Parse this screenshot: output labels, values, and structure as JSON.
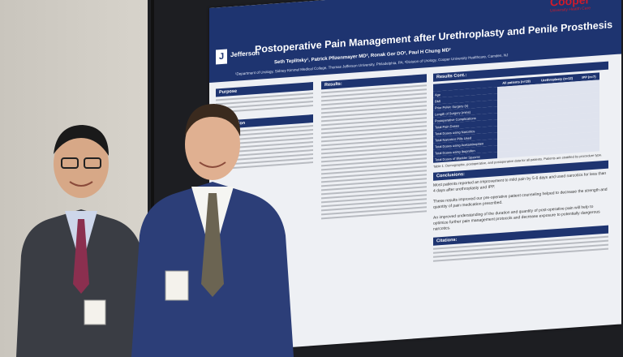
{
  "poster": {
    "title": "Postoperative Pain Management after Urethroplasty and Penile Prosthesis",
    "authors": "Seth Teplitsky¹, Patrick Pfizenmayer MD², Ronak Gor DO², Paul H Chung MD¹",
    "affiliation": "¹Department of Urology, Sidney Kimmel Medical College, Thomas Jefferson University, Philadelphia, PA; ²Division of Urology, Cooper University Healthcare, Camden, NJ",
    "logo_letter": "J",
    "logo_word": "Jefferson",
    "cooper_logo": "Cooper",
    "cooper_sub": "University Health Care",
    "sections": {
      "purpose": "Purpose",
      "introduction": "Introduction",
      "results": "Results:",
      "results_cont": "Results Cont.:",
      "conclusions": "Conclusions:",
      "citations": "Citations:"
    },
    "table": {
      "headers": [
        "",
        "All patients (n=19)",
        "Urethroplasty (n=12)",
        "IPP (n=7)"
      ],
      "rows": [
        [
          "Age",
          "",
          "",
          ""
        ],
        [
          "BMI",
          "",
          "",
          ""
        ],
        [
          "Prior Pelvic Surgery (n)",
          "",
          "",
          ""
        ],
        [
          "Length of Surgery (mins)",
          "",
          "",
          ""
        ],
        [
          "Postoperative Complications",
          "",
          "",
          ""
        ],
        [
          "Total Pain Doses",
          "",
          "",
          ""
        ],
        [
          "Total Doses using Narcotics",
          "",
          "",
          ""
        ],
        [
          "Total Narcotics Pills Used",
          "",
          "",
          ""
        ],
        [
          "Total Doses using Acetaminophen",
          "",
          "",
          ""
        ],
        [
          "Total Doses using Ibuprofen",
          "",
          "",
          ""
        ],
        [
          "Total Doses of Bladder Spasms",
          "",
          "",
          ""
        ]
      ]
    },
    "table_caption": "Table 1: Demographic, postoperative, and postoperative data for all patients. Patients are stratified by procedure type.",
    "conclusions": [
      "Most patients reported an improvement to mild pain by 5-6 days and used narcotics for less than 4 days after urethroplasty and IPP.",
      "These results improved our pre-operative patient counseling helped to decrease the strength and quantity of pain medication prescribed.",
      "An improved understanding of the duration and quantity of post-operative pain will help to optimize further pain management protocols and decrease exposure to potentially dangerous narcotics."
    ]
  },
  "badges": {
    "left_badge": "",
    "right_badge": ""
  },
  "colors": {
    "poster_header": "#1e3470",
    "board": "#1d1e22",
    "wall": "#d2cec6",
    "accent_red": "#d11a2a"
  }
}
